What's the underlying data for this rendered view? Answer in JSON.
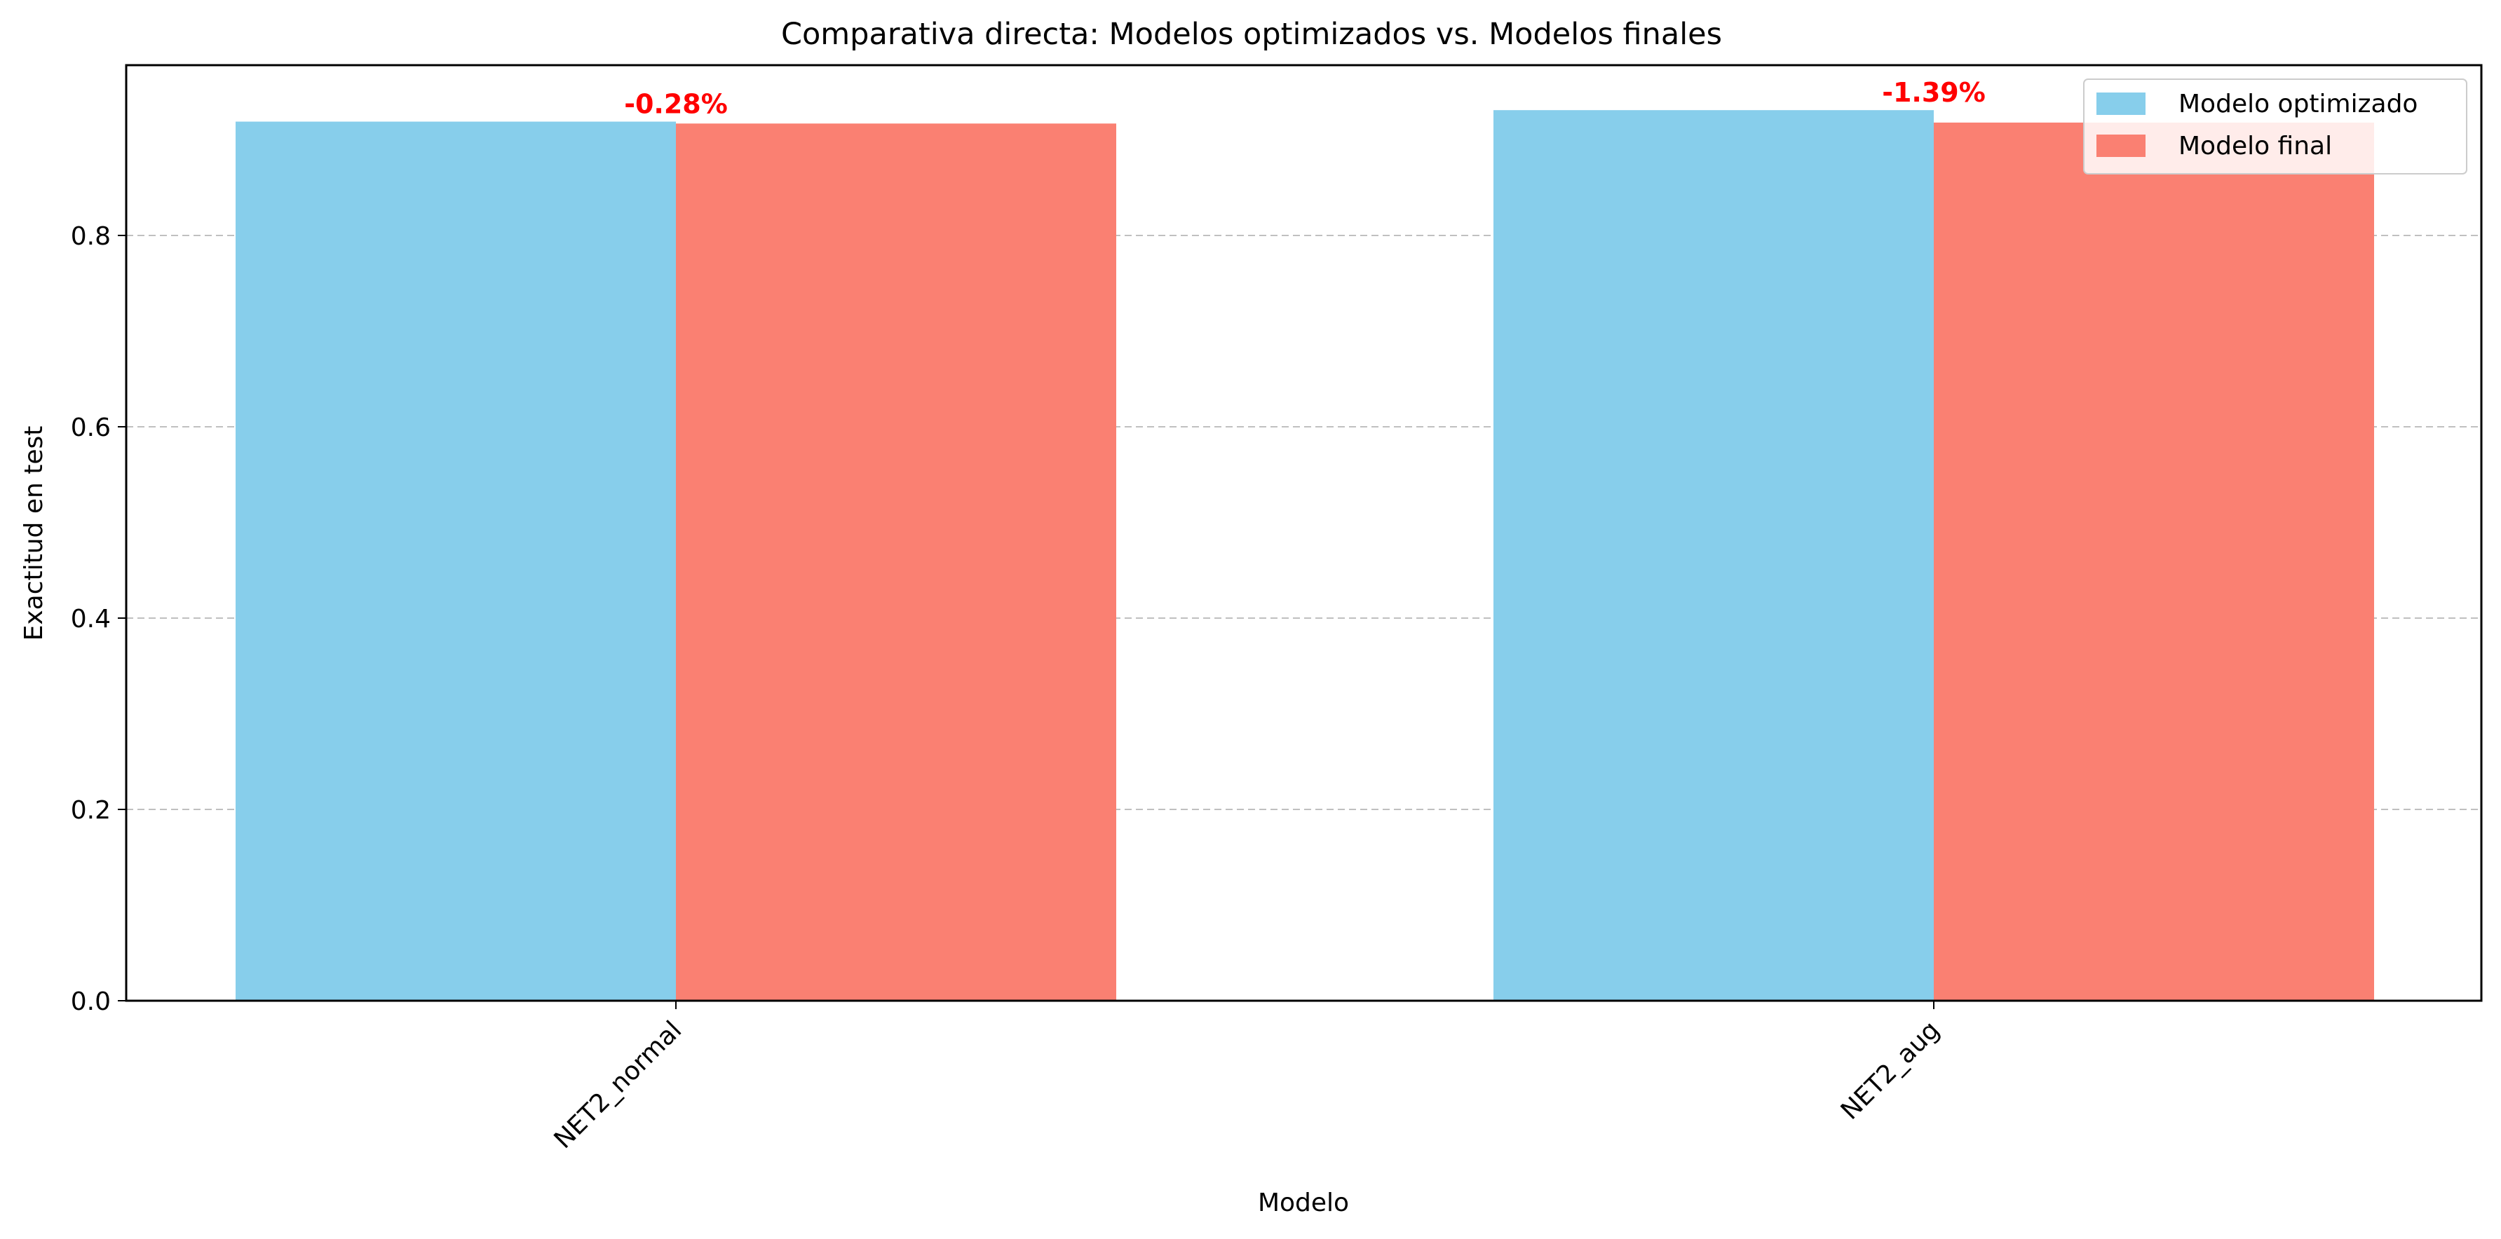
{
  "chart_data": {
    "type": "bar",
    "title": "Comparativa directa: Modelos optimizados vs. Modelos finales",
    "xlabel": "Modelo",
    "ylabel": "Exactitud en test",
    "categories": [
      "NET2_normal",
      "NET2_aug"
    ],
    "series": [
      {
        "name": "Modelo optimizado",
        "color": "#87CEEB",
        "values": [
          0.919,
          0.931
        ]
      },
      {
        "name": "Modelo final",
        "color": "#FA8072",
        "values": [
          0.917,
          0.918
        ]
      }
    ],
    "annotations": [
      "-0.28%",
      "-1.39%"
    ],
    "annotation_color": "#FF0000",
    "ylim": [
      0,
      0.978
    ],
    "yticks": [
      "0.0",
      "0.2",
      "0.4",
      "0.6",
      "0.8"
    ],
    "ytick_values": [
      0,
      0.2,
      0.4,
      0.6,
      0.8
    ],
    "grid": "y, dashed",
    "legend_position": "top-right"
  }
}
